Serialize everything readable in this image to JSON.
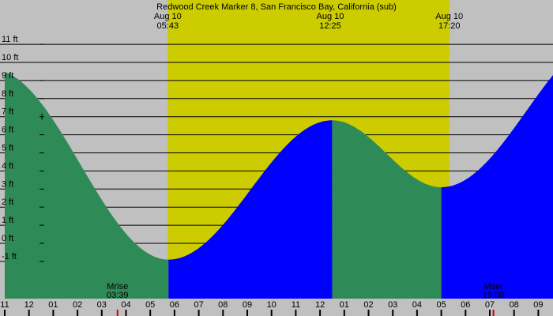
{
  "chart_data": {
    "type": "area",
    "title": "Redwood Creek Marker 8, San Francisco Bay, California (sub)",
    "y_unit": "ft",
    "ylim": [
      -1.9,
      12.5
    ],
    "y_ticks": [
      {
        "value": -1,
        "label": "-1 ft"
      },
      {
        "value": 0,
        "label": "0 ft"
      },
      {
        "value": 1,
        "label": "1 ft"
      },
      {
        "value": 2,
        "label": "2 ft"
      },
      {
        "value": 3,
        "label": "3 ft"
      },
      {
        "value": 4,
        "label": "4 ft"
      },
      {
        "value": 5,
        "label": "5 ft"
      },
      {
        "value": 6,
        "label": "6 ft"
      },
      {
        "value": 7,
        "label": "7 ft"
      },
      {
        "value": 8,
        "label": "8 ft"
      },
      {
        "value": 9,
        "label": "9 ft"
      },
      {
        "value": 10,
        "label": "10 ft"
      },
      {
        "value": 11,
        "label": "11 ft"
      }
    ],
    "xlim_hours": [
      -1,
      22
    ],
    "x_ticks": [
      {
        "hour": -1,
        "label": "11"
      },
      {
        "hour": 0,
        "label": "12"
      },
      {
        "hour": 1,
        "label": "01"
      },
      {
        "hour": 2,
        "label": "02"
      },
      {
        "hour": 3,
        "label": "03"
      },
      {
        "hour": 4,
        "label": "04"
      },
      {
        "hour": 5,
        "label": "05"
      },
      {
        "hour": 6,
        "label": "06"
      },
      {
        "hour": 7,
        "label": "07"
      },
      {
        "hour": 8,
        "label": "08"
      },
      {
        "hour": 9,
        "label": "09"
      },
      {
        "hour": 10,
        "label": "10"
      },
      {
        "hour": 11,
        "label": "11"
      },
      {
        "hour": 12,
        "label": "12"
      },
      {
        "hour": 13,
        "label": "01"
      },
      {
        "hour": 14,
        "label": "02"
      },
      {
        "hour": 15,
        "label": "03"
      },
      {
        "hour": 16,
        "label": "04"
      },
      {
        "hour": 17,
        "label": "05"
      },
      {
        "hour": 18,
        "label": "06"
      },
      {
        "hour": 19,
        "label": "07"
      },
      {
        "hour": 20,
        "label": "08"
      },
      {
        "hour": 21,
        "label": "09"
      }
    ],
    "daylight_hours": [
      5.72,
      17.33
    ],
    "events": [
      {
        "hour": 5.72,
        "date_label": "Aug 10",
        "time_label": "05:43"
      },
      {
        "hour": 12.42,
        "date_label": "Aug 10",
        "time_label": "12:25"
      },
      {
        "hour": 17.33,
        "date_label": "Aug 10",
        "time_label": "17:20"
      }
    ],
    "tide_extremes": [
      {
        "hour": -1.5,
        "value": 9.6
      },
      {
        "hour": 5.75,
        "value": -0.9
      },
      {
        "hour": 12.5,
        "value": 6.8
      },
      {
        "hour": 17.0,
        "value": 3.1
      },
      {
        "hour": 24.0,
        "value": 11.5
      }
    ],
    "flood_periods": [
      [
        5.75,
        12.5
      ],
      [
        17.0,
        22.0
      ]
    ],
    "ebb_periods": [
      [
        -1.0,
        5.75
      ],
      [
        12.5,
        17.0
      ]
    ],
    "moon": [
      {
        "name": "Mrise",
        "time_label": "03:39",
        "hour": 3.65
      },
      {
        "name": "Mset",
        "time_label": "19:09",
        "hour": 19.15
      }
    ],
    "colors": {
      "background": "#c0c0c0",
      "daylight": "#cccc00",
      "ebb": "#2e8b57",
      "flood": "#0000ff",
      "grid": "#000000",
      "moon_tick": "#cc0000"
    }
  }
}
